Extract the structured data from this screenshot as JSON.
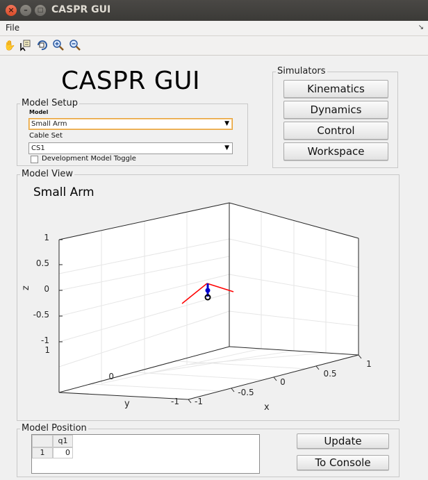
{
  "window": {
    "title": "CASPR GUI"
  },
  "menu": {
    "file_label": "File"
  },
  "toolbar": {
    "tools": [
      "hand-pan-icon",
      "data-cursor-icon",
      "rotate-3d-icon",
      "zoom-in-icon",
      "zoom-out-icon"
    ]
  },
  "header": {
    "title": "CASPR GUI"
  },
  "model_setup": {
    "legend": "Model Setup",
    "model_label": "Model",
    "model_value": "Small Arm",
    "cable_set_label": "Cable Set",
    "cable_set_value": "CS1",
    "dev_toggle_label": "Development Model Toggle",
    "dev_toggle_checked": false
  },
  "simulators": {
    "legend": "Simulators",
    "buttons": [
      "Kinematics",
      "Dynamics",
      "Control",
      "Workspace"
    ]
  },
  "model_view": {
    "legend": "Model View",
    "plot_title": "Small Arm",
    "z_label": "z",
    "y_label": "y",
    "x_label": "x",
    "z_ticks": [
      "1",
      "0.5",
      "0",
      "-0.5",
      "-1"
    ],
    "y_ticks": [
      "1",
      "0",
      "-1"
    ],
    "x_ticks": [
      "-1",
      "-0.5",
      "0",
      "0.5",
      "1"
    ]
  },
  "model_position": {
    "legend": "Model Position",
    "column_header": "q1",
    "row_header": "1",
    "cell_value": "0",
    "update_label": "Update",
    "console_label": "To Console"
  },
  "colors": {
    "cable": "#ff0000",
    "link": "#0000cc",
    "joint": "#000000"
  }
}
